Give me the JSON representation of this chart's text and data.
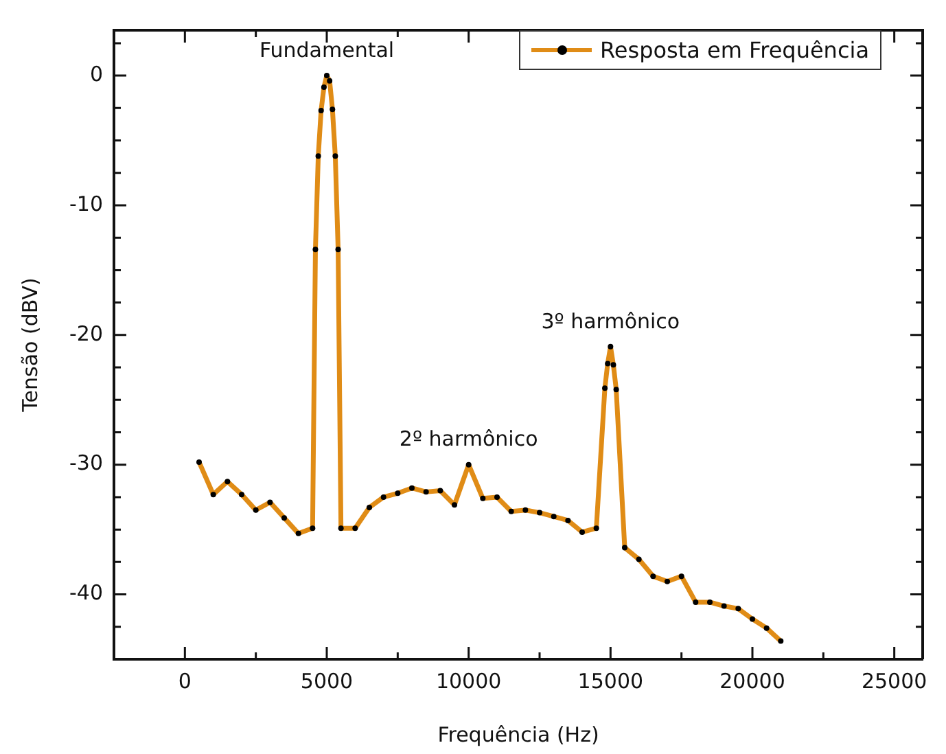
{
  "chart_data": {
    "type": "line",
    "xlabel": "Frequência (Hz)",
    "ylabel": "Tensão (dBV)",
    "x": [
      500,
      1000,
      1500,
      2000,
      2500,
      3000,
      3500,
      4000,
      4500,
      4600,
      4700,
      4800,
      4900,
      5000,
      5100,
      5200,
      5300,
      5400,
      5500,
      6000,
      6500,
      7000,
      7500,
      8000,
      8500,
      9000,
      9500,
      10000,
      10500,
      11000,
      11500,
      12000,
      12500,
      13000,
      13500,
      14000,
      14500,
      14800,
      14900,
      15000,
      15100,
      15200,
      15500,
      16000,
      16500,
      17000,
      17500,
      18000,
      18500,
      19000,
      19500,
      20000,
      20500,
      21000
    ],
    "series": [
      {
        "name": "Resposta em Frequência",
        "color": "#e08c16",
        "values": [
          -29.8,
          -32.3,
          -31.3,
          -32.3,
          -33.5,
          -32.9,
          -34.1,
          -35.3,
          -34.9,
          -13.4,
          -6.2,
          -2.7,
          -0.9,
          0,
          -0.4,
          -2.6,
          -6.2,
          -13.4,
          -34.9,
          -34.9,
          -33.3,
          -32.5,
          -32.2,
          -31.8,
          -32.1,
          -32.0,
          -33.1,
          -30.0,
          -32.6,
          -32.5,
          -33.6,
          -33.5,
          -33.7,
          -34.0,
          -34.3,
          -35.2,
          -34.9,
          -24.1,
          -22.2,
          -20.9,
          -22.3,
          -24.2,
          -36.4,
          -37.3,
          -38.6,
          -39.0,
          -38.6,
          -40.6,
          -40.6,
          -40.9,
          -41.1,
          -41.9,
          -42.6,
          -43.6
        ]
      }
    ],
    "xlim": [
      -2500,
      26000
    ],
    "ylim": [
      -45,
      3.5
    ],
    "xticks": [
      {
        "value": -2500,
        "label": null
      },
      0,
      {
        "value": 2500,
        "label": null
      },
      5000,
      {
        "value": 7500,
        "label": null
      },
      10000,
      {
        "value": 12500,
        "label": null
      },
      15000,
      {
        "value": 17500,
        "label": null
      },
      20000,
      {
        "value": 22500,
        "label": null
      },
      25000
    ],
    "yticks": [
      {
        "value": -42.5,
        "label": null
      },
      -40,
      {
        "value": -37.5,
        "label": null
      },
      -30,
      {
        "value": -35,
        "label": null
      },
      {
        "value": -32.5,
        "label": null
      },
      {
        "value": -27.5,
        "label": null
      },
      {
        "value": -25,
        "label": null
      },
      -20,
      {
        "value": -22.5,
        "label": null
      },
      {
        "value": -17.5,
        "label": null
      },
      {
        "value": -15,
        "label": null
      },
      {
        "value": -12.5,
        "label": null
      },
      -10,
      {
        "value": -7.5,
        "label": null
      },
      {
        "value": -5,
        "label": null
      },
      {
        "value": -2.5,
        "label": null
      },
      0,
      {
        "value": 2.5,
        "label": null
      }
    ],
    "annotations": [
      {
        "text": "Fundamental",
        "x": 5000,
        "y": 0
      },
      {
        "text": "2º harmônico",
        "x": 10000,
        "y": -30
      },
      {
        "text": "3º harmônico",
        "x": 15000,
        "y": -20.9
      }
    ],
    "legend": "top right",
    "marker": "circle",
    "line_style": "solid",
    "grid": false
  }
}
